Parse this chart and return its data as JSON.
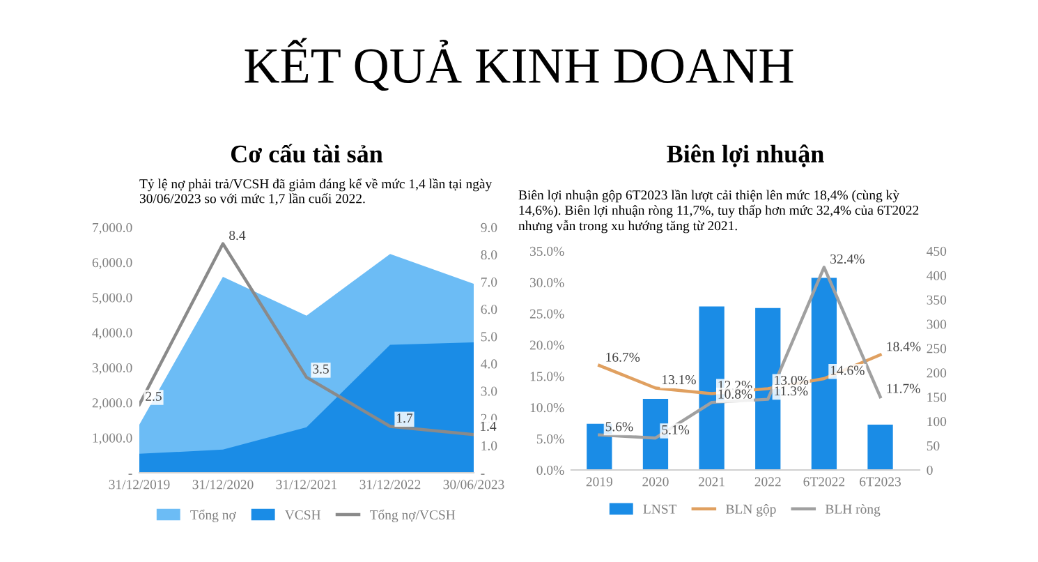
{
  "chart_data": [
    {
      "type": "area",
      "title": "Cơ cấu tài sản",
      "subtitle": "Tỷ lệ nợ phải trả/VCSH đã giảm đáng kể về mức 1,4 lần tại ngày\n30/06/2023 so với mức 1,7 lần cuối 2022.",
      "annotations": [
        "KẾT QUẢ KINH DOANH"
      ],
      "categories": [
        "31/12/2019",
        "31/12/2020",
        "31/12/2021",
        "31/12/2022",
        "30/06/2023"
      ],
      "series": [
        {
          "name": "Tổng nợ",
          "type": "area",
          "color": "#6cbcf5",
          "values": [
            1370,
            5590,
            4480,
            6240,
            5390
          ]
        },
        {
          "name": "VCSH",
          "type": "area",
          "color": "#1a8ce6",
          "values": [
            540,
            660,
            1300,
            3650,
            3720
          ]
        },
        {
          "name": "Tổng nợ/VCSH",
          "type": "line",
          "axis": "y2",
          "color": "#8a8a8a",
          "values": [
            2.5,
            8.4,
            3.5,
            1.7,
            1.4
          ],
          "value_labels": [
            "2.5",
            "8.4",
            "3.5",
            "1.7",
            "1.4"
          ]
        }
      ],
      "ylim": [
        0,
        7000
      ],
      "yticks": [
        {
          "value": 0,
          "label": "-"
        },
        {
          "value": 1000,
          "label": "1,000.0"
        },
        {
          "value": 2000,
          "label": "2,000.0"
        },
        {
          "value": 3000,
          "label": "3,000.0"
        },
        {
          "value": 4000,
          "label": "4,000.0"
        },
        {
          "value": 5000,
          "label": "5,000.0"
        },
        {
          "value": 6000,
          "label": "6,000.0"
        },
        {
          "value": 7000,
          "label": "7,000.0"
        }
      ],
      "y2lim": [
        0,
        9
      ],
      "y2ticks": [
        {
          "value": 0,
          "label": "-"
        },
        {
          "value": 1,
          "label": "1.0"
        },
        {
          "value": 2,
          "label": "2.0"
        },
        {
          "value": 3,
          "label": "3.0"
        },
        {
          "value": 4,
          "label": "4.0"
        },
        {
          "value": 5,
          "label": "5.0"
        },
        {
          "value": 6,
          "label": "6.0"
        },
        {
          "value": 7,
          "label": "7.0"
        },
        {
          "value": 8,
          "label": "8.0"
        },
        {
          "value": 9,
          "label": "9.0"
        }
      ],
      "legend": "bottom",
      "grid": false
    },
    {
      "type": "bar",
      "title": "Biên lợi nhuận",
      "subtitle": "Biên lợi nhuận gộp 6T2023 lần lượt cải thiện lên mức 18,4% (cùng kỳ\n14,6%). Biên lợi nhuận ròng 11,7%, tuy thấp hơn mức 32,4% của 6T2022\nnhưng vẫn trong xu hướng tăng từ 2021.",
      "categories": [
        "2019",
        "2020",
        "2021",
        "2022",
        "6T2022",
        "6T2023"
      ],
      "series": [
        {
          "name": "LNST",
          "type": "bar",
          "axis": "y2",
          "color": "#1a8ce6",
          "values": [
            95,
            146,
            336,
            333,
            395,
            93
          ]
        },
        {
          "name": "BLN gộp",
          "type": "line",
          "color": "#e0a060",
          "values": [
            16.7,
            13.1,
            12.2,
            13.0,
            14.6,
            18.4
          ],
          "value_labels": [
            "16.7%",
            "13.1%",
            "12.2%",
            "13.0%",
            "14.6%",
            "18.4%"
          ]
        },
        {
          "name": "BLH ròng",
          "type": "line",
          "color": "#a0a0a0",
          "values": [
            5.6,
            5.1,
            10.8,
            11.3,
            32.4,
            11.7
          ],
          "value_labels": [
            "5.6%",
            "5.1%",
            "10.8%",
            "11.3%",
            "32.4%",
            "11.7%"
          ]
        }
      ],
      "ylim": [
        0,
        35
      ],
      "yticks": [
        {
          "value": 0,
          "label": "0.0%"
        },
        {
          "value": 5,
          "label": "5.0%"
        },
        {
          "value": 10,
          "label": "10.0%"
        },
        {
          "value": 15,
          "label": "15.0%"
        },
        {
          "value": 20,
          "label": "20.0%"
        },
        {
          "value": 25,
          "label": "25.0%"
        },
        {
          "value": 30,
          "label": "30.0%"
        },
        {
          "value": 35,
          "label": "35.0%"
        }
      ],
      "y2lim": [
        0,
        450
      ],
      "y2ticks": [
        0,
        50,
        100,
        150,
        200,
        250,
        300,
        350,
        400,
        450
      ],
      "legend": "bottom",
      "grid": false
    }
  ]
}
